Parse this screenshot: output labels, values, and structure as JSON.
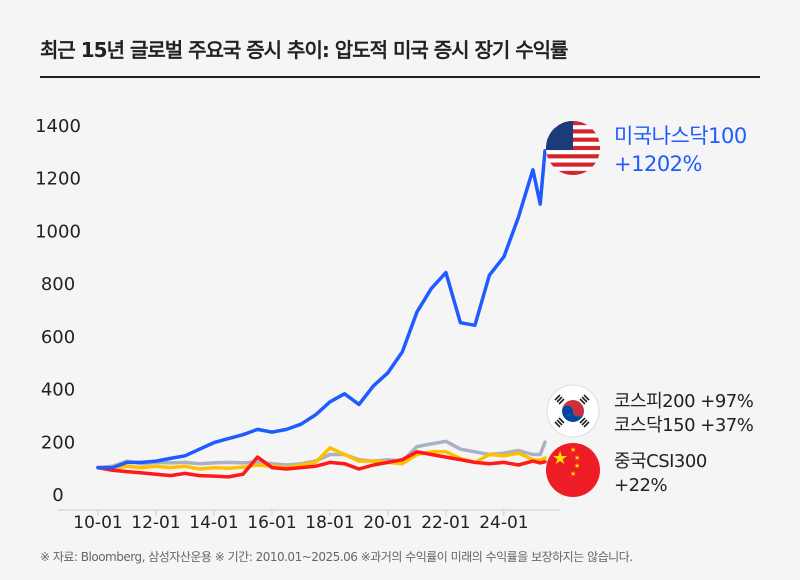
{
  "title": "최근 15년 글로벌 주요국 증시 추이: 압도적 미국 증시 장기 수익률",
  "footer": "※ 자료: Bloomberg, 삼성자산운용 ※ 기간: 2010.01~2025.06 ※과거의 수익률이 미래의 수익률을 보장하지는 않습니다.",
  "legend": {
    "us": {
      "name": "미국나스닥100",
      "return": "+1202%",
      "flag": "us-flag-icon",
      "color": "#1f5cff"
    },
    "kr1": {
      "text": "코스피200 +97%"
    },
    "kr2": {
      "text": "코스닥150 +37%"
    },
    "kr_flag": "korea-flag-icon",
    "cn": {
      "name": "중국CSI300",
      "return": "+22%",
      "flag": "china-flag-icon"
    }
  },
  "chart_data": {
    "type": "line",
    "title": "",
    "xlabel": "",
    "ylabel": "",
    "ylim": [
      0,
      1400
    ],
    "yticks": [
      "0",
      "200",
      "400",
      "600",
      "800",
      "1000",
      "1200",
      "1400"
    ],
    "xticks": [
      "10-01",
      "12-01",
      "14-01",
      "16-01",
      "18-01",
      "20-01",
      "22-01",
      "24-01"
    ],
    "grid": false,
    "x": [
      "2010-01",
      "2010-07",
      "2011-01",
      "2011-07",
      "2012-01",
      "2012-07",
      "2013-01",
      "2013-07",
      "2014-01",
      "2014-07",
      "2015-01",
      "2015-07",
      "2016-01",
      "2016-07",
      "2017-01",
      "2017-07",
      "2018-01",
      "2018-07",
      "2019-01",
      "2019-07",
      "2020-01",
      "2020-07",
      "2021-01",
      "2021-07",
      "2022-01",
      "2022-07",
      "2023-01",
      "2023-07",
      "2024-01",
      "2024-07",
      "2025-01",
      "2025-04",
      "2025-06"
    ],
    "series": [
      {
        "name": "코스피200",
        "color": "#a9b1c3",
        "values": [
          100,
          105,
          125,
          115,
          120,
          118,
          120,
          115,
          118,
          120,
          118,
          122,
          115,
          110,
          115,
          125,
          150,
          150,
          130,
          125,
          130,
          125,
          180,
          190,
          200,
          170,
          160,
          150,
          155,
          165,
          150,
          150,
          197
        ]
      },
      {
        "name": "코스닥150",
        "color": "#ffc000",
        "values": [
          100,
          95,
          105,
          100,
          105,
          100,
          105,
          95,
          100,
          98,
          102,
          110,
          105,
          100,
          110,
          120,
          175,
          150,
          125,
          125,
          120,
          115,
          150,
          160,
          160,
          135,
          120,
          150,
          145,
          155,
          130,
          128,
          137
        ]
      },
      {
        "name": "중국CSI300",
        "color": "#ff1a1a",
        "values": [
          100,
          90,
          85,
          80,
          75,
          70,
          78,
          70,
          68,
          65,
          75,
          140,
          100,
          95,
          100,
          105,
          120,
          115,
          95,
          110,
          120,
          130,
          160,
          150,
          140,
          130,
          120,
          115,
          120,
          110,
          125,
          118,
          122
        ]
      },
      {
        "name": "미국나스닥100",
        "color": "#1f5cff",
        "values": [
          100,
          100,
          120,
          120,
          125,
          135,
          145,
          170,
          195,
          210,
          225,
          245,
          235,
          245,
          265,
          300,
          350,
          380,
          340,
          410,
          460,
          540,
          690,
          780,
          840,
          650,
          640,
          830,
          900,
          1050,
          1230,
          1100,
          1302
        ]
      }
    ]
  }
}
